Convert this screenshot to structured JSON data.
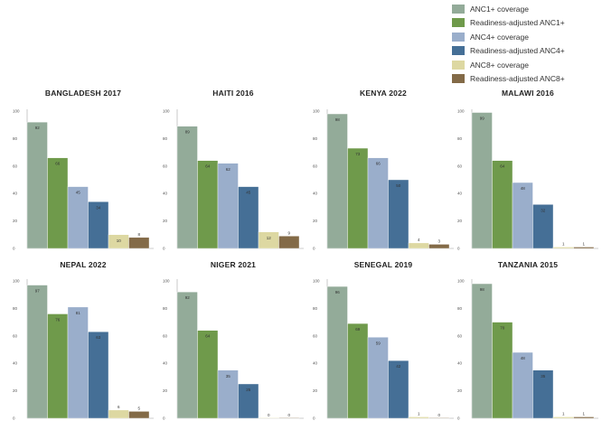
{
  "chart_data": {
    "type": "bar",
    "series_names": [
      "ANC1+ coverage",
      "Readiness-adjusted ANC1+",
      "ANC4+ coverage",
      "Readiness-adjusted ANC4+",
      "ANC8+ coverage",
      "Readiness-adjusted ANC8+"
    ],
    "colors": [
      "#93ab99",
      "#6f9a4b",
      "#9aaecb",
      "#456f96",
      "#ddd8a2",
      "#836a47"
    ],
    "ylim": [
      0,
      100
    ],
    "yticks": [
      0,
      20,
      40,
      60,
      80,
      100
    ],
    "legend_position": "top-right",
    "panels": [
      {
        "title": "BANGLADESH 2017",
        "values": [
          92,
          66,
          45,
          34,
          10,
          8
        ]
      },
      {
        "title": "HAITI 2016",
        "values": [
          89,
          64,
          62,
          45,
          12,
          9
        ]
      },
      {
        "title": "KENYA 2022",
        "values": [
          98,
          73,
          66,
          50,
          4,
          3
        ]
      },
      {
        "title": "MALAWI 2016",
        "values": [
          99,
          64,
          48,
          32,
          1,
          1
        ]
      },
      {
        "title": "NEPAL 2022",
        "values": [
          97,
          76,
          81,
          63,
          6,
          5
        ]
      },
      {
        "title": "NIGER 2021",
        "values": [
          92,
          64,
          35,
          25,
          0,
          0
        ]
      },
      {
        "title": "SENEGAL 2019",
        "values": [
          96,
          69,
          59,
          42,
          1,
          0
        ]
      },
      {
        "title": "TANZANIA 2015",
        "values": [
          98,
          70,
          48,
          35,
          1,
          1
        ]
      }
    ]
  }
}
